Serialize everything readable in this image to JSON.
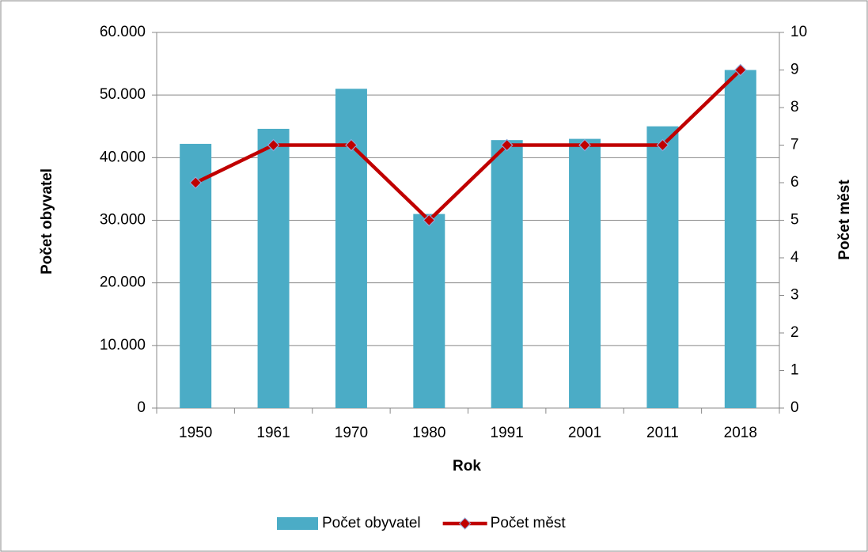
{
  "chart_data": {
    "type": "bar+line",
    "categories": [
      "1950",
      "1961",
      "1970",
      "1980",
      "1991",
      "2001",
      "2011",
      "2018"
    ],
    "series": [
      {
        "name": "Počet obyvatel",
        "type": "bar",
        "color": "#4bacc6",
        "values": [
          42200,
          44600,
          51000,
          31000,
          42800,
          43000,
          45000,
          54000
        ]
      },
      {
        "name": "Počet měst",
        "type": "line",
        "color": "#c00000",
        "axis": "y2",
        "values": [
          6,
          7,
          7,
          5,
          7,
          7,
          7,
          9
        ]
      }
    ],
    "x_label": "Rok",
    "y_label": "Počet obyvatel",
    "y2_label": "Počet měst",
    "ylim": [
      0,
      60000
    ],
    "yticks": [
      0,
      {
        "value": 10000,
        "label": "10.000"
      },
      {
        "value": 20000,
        "label": "20.000"
      },
      {
        "value": 30000,
        "label": "30.000"
      },
      {
        "value": 40000,
        "label": "40.000"
      },
      {
        "value": 50000,
        "label": "50.000"
      },
      {
        "value": 60000,
        "label": "60.000"
      }
    ],
    "y2lim": [
      0,
      10
    ],
    "y2ticks": [
      0,
      1,
      2,
      3,
      4,
      5,
      6,
      7,
      8,
      9,
      10
    ],
    "grid": true,
    "legend": "bottom"
  }
}
